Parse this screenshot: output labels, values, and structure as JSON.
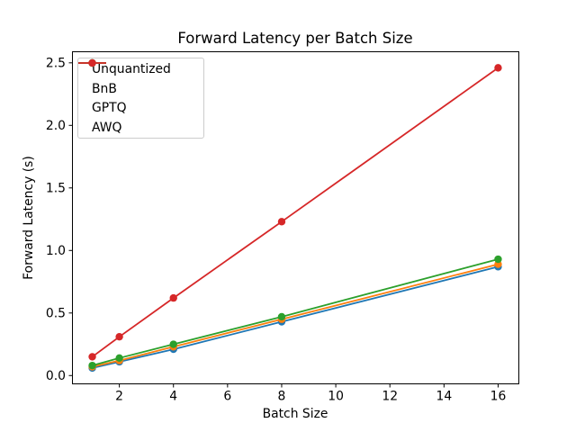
{
  "figure": {
    "title": "Forward Latency per Batch Size",
    "xlabel": "Batch Size",
    "ylabel": "Forward Latency (s)"
  },
  "chart_data": {
    "type": "line",
    "title": "Forward Latency per Batch Size",
    "xlabel": "Batch Size",
    "ylabel": "Forward Latency (s)",
    "x": [
      1,
      2,
      4,
      8,
      16
    ],
    "series": [
      {
        "name": "Unquantized",
        "color": "#1f77b4",
        "values": [
          0.06,
          0.11,
          0.21,
          0.43,
          0.87
        ]
      },
      {
        "name": "BnB",
        "color": "#ff7f0e",
        "values": [
          0.07,
          0.12,
          0.23,
          0.45,
          0.89
        ]
      },
      {
        "name": "GPTQ",
        "color": "#2ca02c",
        "values": [
          0.08,
          0.14,
          0.25,
          0.47,
          0.93
        ]
      },
      {
        "name": "AWQ",
        "color": "#d62728",
        "values": [
          0.15,
          0.31,
          0.62,
          1.23,
          2.46
        ]
      }
    ],
    "xticks": [
      2,
      4,
      6,
      8,
      10,
      12,
      14,
      16
    ],
    "yticks": [
      0.0,
      0.5,
      1.0,
      1.5,
      2.0,
      2.5
    ],
    "xlim": [
      0.25,
      16.75
    ],
    "ylim": [
      -0.07,
      2.585
    ],
    "legend_position": "upper-left",
    "grid": false,
    "marker": "circle",
    "axis_color": "#000000"
  }
}
